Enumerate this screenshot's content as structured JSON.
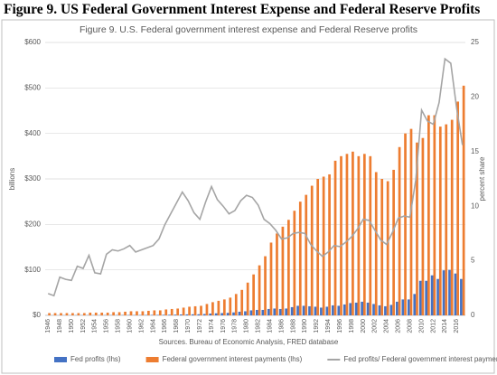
{
  "figure_caption": "Figure 9. US Federal Government Interest Expense and Federal Reserve Profits",
  "chart_data": {
    "type": "bar",
    "title": "Figure 9. U.S. Federal government interest expense and Federal Reserve profits",
    "ylabel": "billions",
    "y2label": "percent share",
    "source": "Sources. Bureau of Economic Analysis, FRED database",
    "categories": [
      "1946",
      null,
      "1948",
      null,
      "1950",
      null,
      "1952",
      null,
      "1954",
      null,
      "1956",
      null,
      "1958",
      null,
      "1960",
      null,
      "1962",
      null,
      "1964",
      null,
      "1966",
      null,
      "1968",
      null,
      "1970",
      null,
      "1972",
      null,
      "1974",
      null,
      "1976",
      null,
      "1978",
      null,
      "1980",
      null,
      "1982",
      null,
      "1984",
      null,
      "1986",
      null,
      "1988",
      null,
      "1990",
      null,
      "1992",
      null,
      "1994",
      null,
      "1996",
      null,
      "1998",
      null,
      "2000",
      null,
      "2002",
      null,
      "2004",
      null,
      "2006",
      null,
      "2008",
      null,
      "2010",
      null,
      "2012",
      null,
      "2014",
      null,
      "2016",
      null
    ],
    "series": [
      {
        "name": "Fed profits (lhs)",
        "color": "#4472c4",
        "type": "bar",
        "values": [
          0.1,
          0.1,
          0.2,
          0.2,
          0.2,
          0.3,
          0.3,
          0.4,
          0.3,
          0.3,
          0.4,
          0.5,
          0.5,
          0.6,
          0.7,
          0.6,
          0.7,
          0.8,
          0.9,
          1,
          1.2,
          1.4,
          1.6,
          2,
          2.2,
          2.3,
          2.4,
          3,
          4,
          4.5,
          5,
          5.5,
          6.5,
          8,
          9,
          11,
          12,
          12,
          14,
          15,
          14,
          15,
          18,
          21,
          21,
          20,
          19,
          17,
          19,
          22,
          21,
          24,
          27,
          28,
          30,
          28,
          25,
          22,
          20,
          23,
          30,
          35,
          35,
          47,
          76,
          76,
          88,
          80,
          99,
          100,
          92,
          80
        ]
      },
      {
        "name": "Federal government interest payments (lhs)",
        "color": "#ed7d31",
        "type": "bar",
        "values": [
          5,
          5,
          5,
          5,
          5,
          5,
          5,
          6,
          6,
          6,
          6,
          7,
          7,
          8,
          9,
          9,
          9,
          10,
          11,
          11,
          13,
          14,
          15,
          17,
          19,
          20,
          21,
          25,
          29,
          32,
          35,
          39,
          47,
          56,
          72,
          90,
          110,
          130,
          160,
          180,
          195,
          210,
          230,
          250,
          265,
          285,
          300,
          305,
          310,
          340,
          350,
          355,
          360,
          350,
          355,
          350,
          315,
          300,
          295,
          320,
          370,
          400,
          410,
          380,
          390,
          440,
          440,
          415,
          420,
          430,
          470,
          505
        ]
      },
      {
        "name": "Fed profits/ Federal government interest payments (rhs)",
        "color": "#a5a5a5",
        "type": "line",
        "axis": "y2",
        "values": [
          2,
          1.8,
          3.5,
          3.3,
          3.2,
          4.5,
          4.3,
          5.5,
          3.9,
          3.8,
          5.6,
          6,
          5.9,
          6.1,
          6.4,
          5.8,
          6,
          6.2,
          6.4,
          7,
          8.3,
          9.3,
          10.3,
          11.3,
          10.5,
          9.4,
          8.8,
          10.4,
          11.8,
          10.6,
          10,
          9.3,
          9.6,
          10.5,
          11,
          10.8,
          10.1,
          8.8,
          8.4,
          7.8,
          7,
          7.1,
          7.5,
          7.6,
          7.5,
          6.5,
          5.9,
          5.4,
          5.8,
          6.4,
          6.3,
          6.7,
          7.2,
          7.9,
          8.8,
          8.7,
          7.8,
          6.9,
          6.5,
          7.6,
          8.9,
          9.1,
          9,
          12.4,
          18.8,
          17.8,
          17.5,
          19.5,
          23.5,
          23.1,
          19,
          15.6
        ]
      }
    ],
    "ylim": [
      0,
      600
    ],
    "yticks": [
      {
        "value": 0,
        "label": "$0"
      },
      {
        "value": 100,
        "label": "$100"
      },
      {
        "value": 200,
        "label": "$200"
      },
      {
        "value": 300,
        "label": "$300"
      },
      {
        "value": 400,
        "label": "$400"
      },
      {
        "value": 500,
        "label": "$500"
      },
      {
        "value": 600,
        "label": "$600"
      }
    ],
    "y2lim": [
      0,
      25
    ],
    "y2ticks": [
      0,
      5,
      10,
      15,
      20,
      25
    ],
    "grid": true,
    "legend": "bottom"
  }
}
